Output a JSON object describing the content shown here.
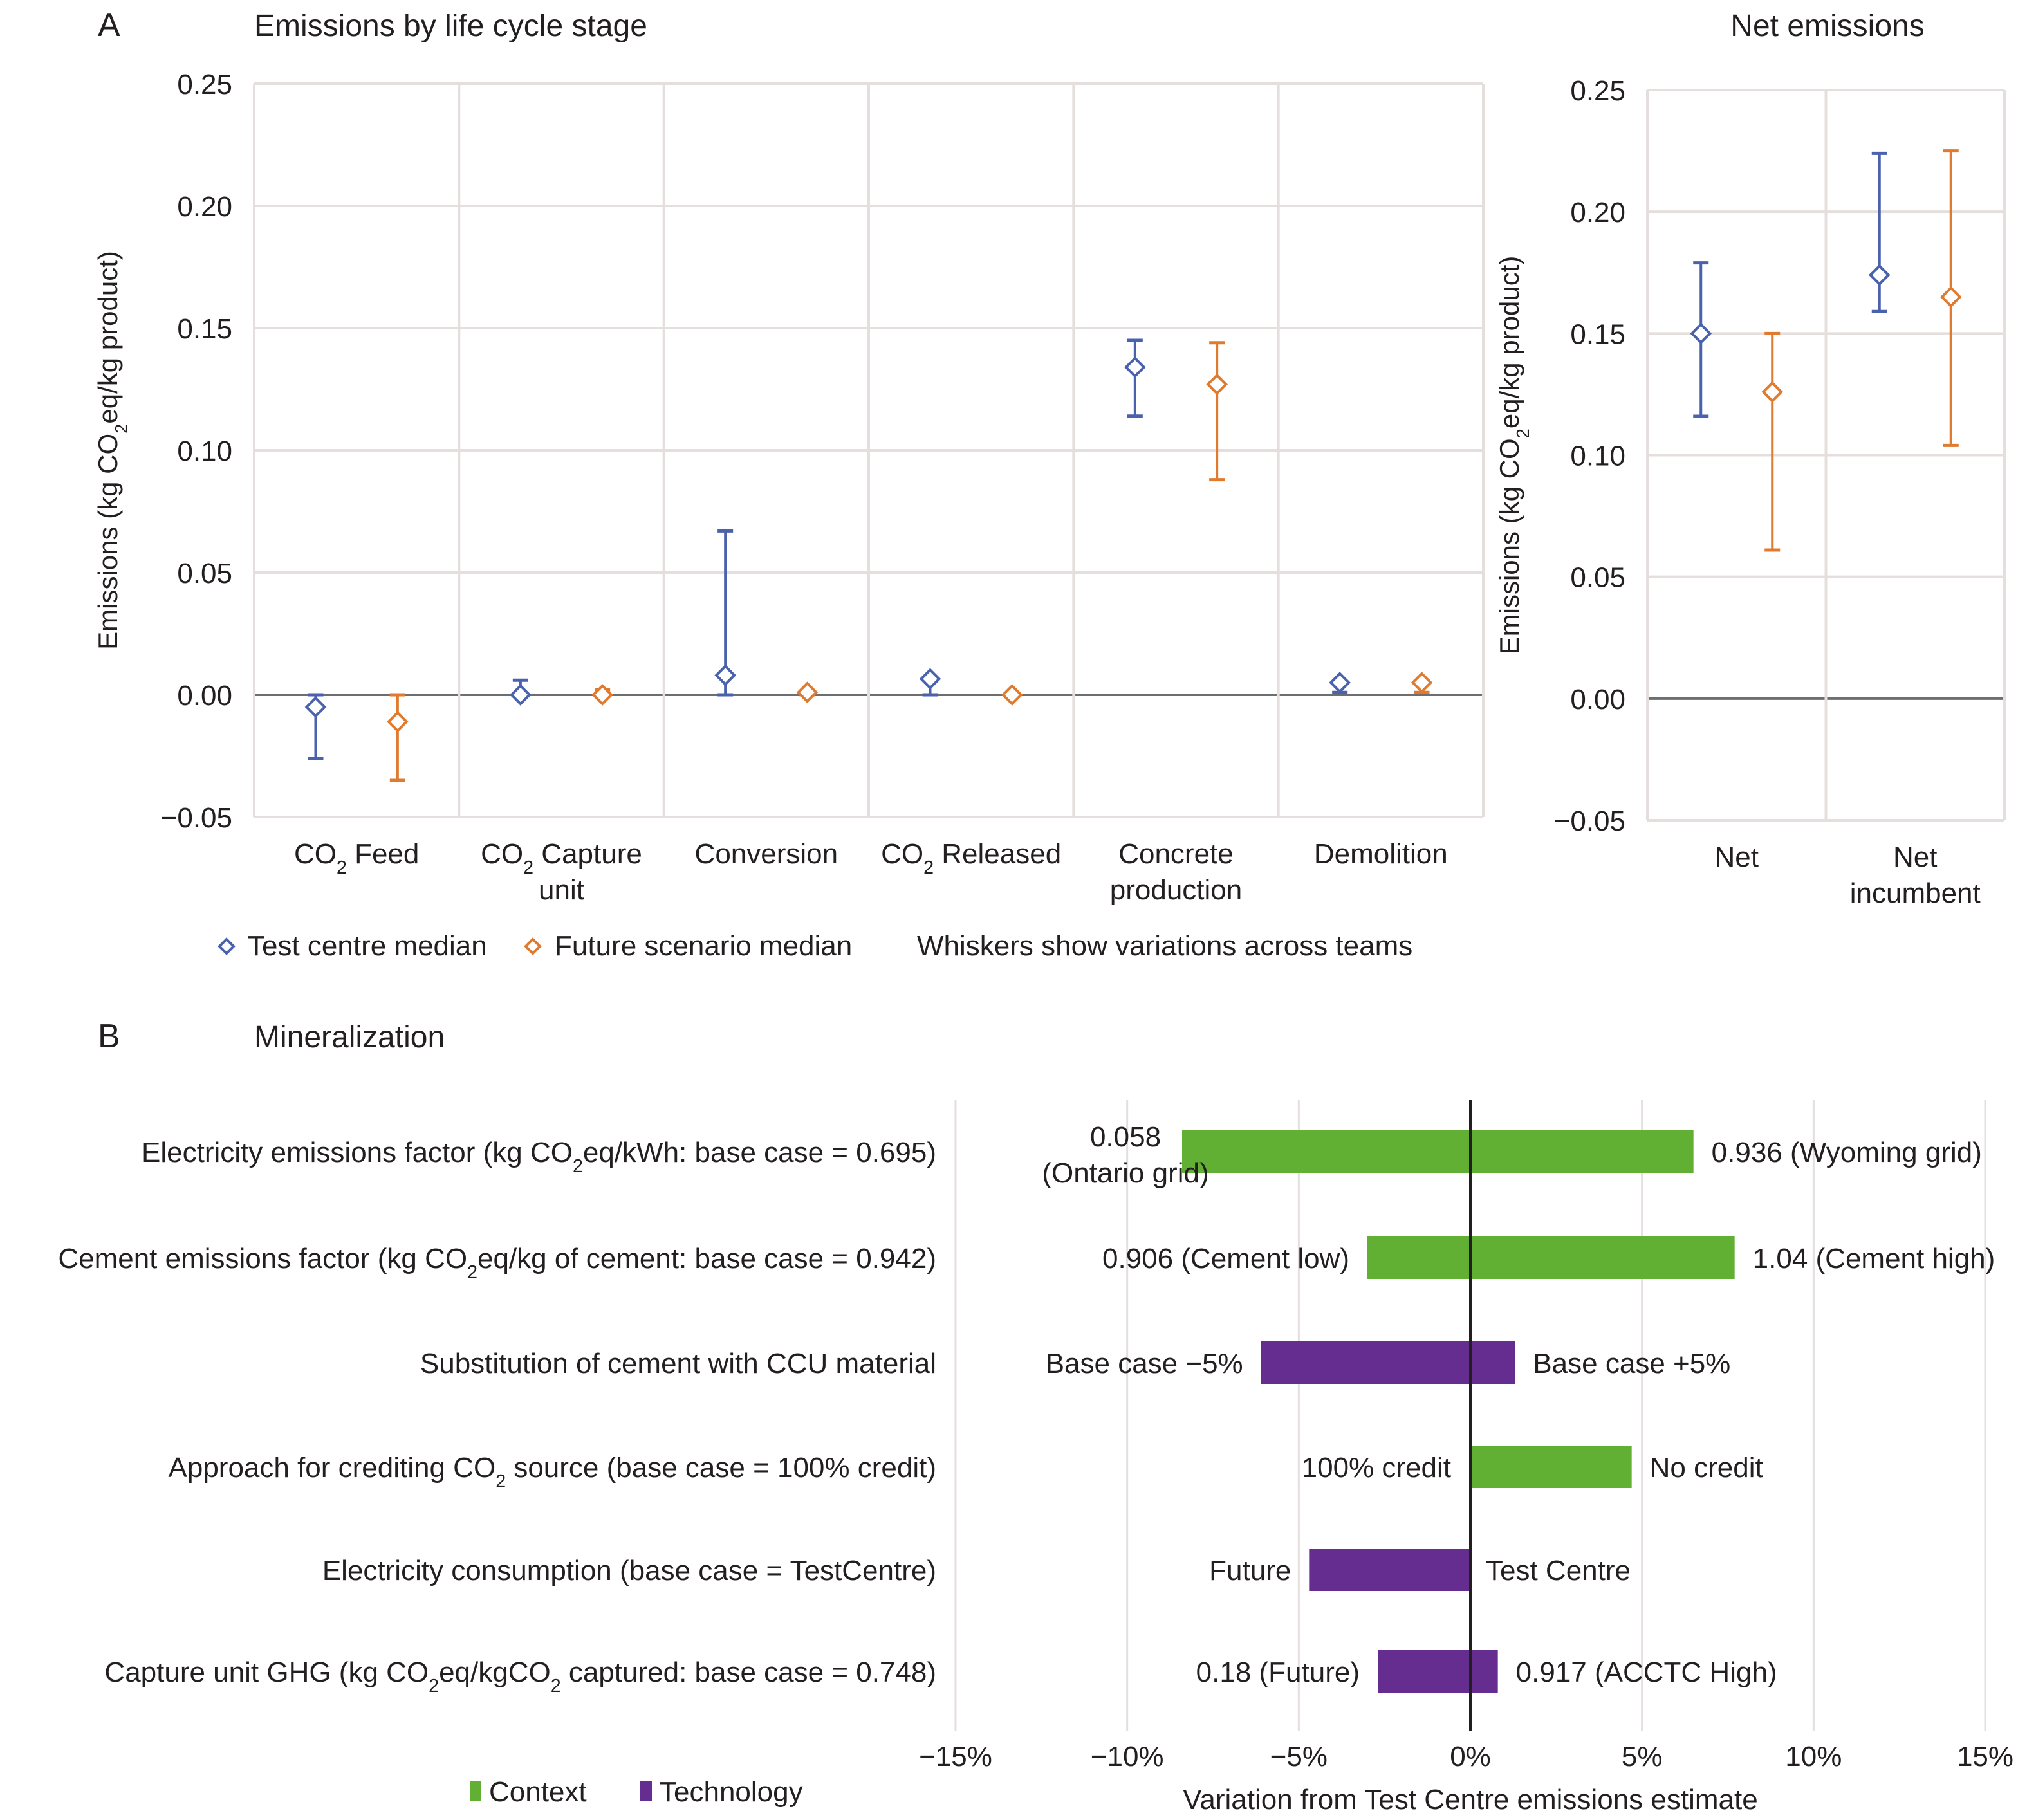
{
  "chart_data": [
    {
      "panel_letter": "A",
      "type": "scatter",
      "title": "Emissions by life cycle stage",
      "xlabel": "",
      "ylabel": "Emissions (kg CO₂eq/kg product)",
      "ylim": [
        -0.05,
        0.25
      ],
      "yticks": [
        "−0.05",
        "0.00",
        "0.05",
        "0.10",
        "0.15",
        "0.20",
        "0.25"
      ],
      "ytick_values": [
        -0.05,
        0,
        0.05,
        0.1,
        0.15,
        0.2,
        0.25
      ],
      "grid": true,
      "categories": [
        {
          "lines": [
            "CO₂ Feed"
          ]
        },
        {
          "lines": [
            "CO₂ Capture",
            "unit"
          ]
        },
        {
          "lines": [
            "Conversion"
          ]
        },
        {
          "lines": [
            "CO₂ Released"
          ]
        },
        {
          "lines": [
            "Concrete",
            "production"
          ]
        },
        {
          "lines": [
            "Demolition"
          ]
        }
      ],
      "series": [
        {
          "name": "Test centre median",
          "color": "#4a62ad",
          "median": [
            -0.005,
            0.0,
            0.008,
            0.0065,
            0.134,
            0.005
          ],
          "low": [
            -0.026,
            0.0,
            0.0,
            0.0,
            0.114,
            0.001
          ],
          "high": [
            0.0,
            0.006,
            0.067,
            0.006,
            0.145,
            0.005
          ]
        },
        {
          "name": "Future scenario median",
          "color": "#e07a2e",
          "median": [
            -0.011,
            0.0,
            0.001,
            0.0,
            0.127,
            0.005
          ],
          "low": [
            -0.035,
            0.0,
            0.0,
            0.0,
            0.088,
            0.001
          ],
          "high": [
            0.0,
            0.002,
            0.001,
            0.0,
            0.144,
            0.005
          ]
        }
      ],
      "legend": {
        "placement": "bottom",
        "items": [
          "Test centre median",
          "Future scenario median"
        ],
        "note": "Whiskers show variations across teams"
      }
    },
    {
      "type": "scatter",
      "title": "Net emissions",
      "xlabel": "",
      "ylabel": "Emissions (kg CO₂eq/kg product)",
      "ylim": [
        -0.05,
        0.25
      ],
      "yticks": [
        "−0.05",
        "0.00",
        "0.05",
        "0.10",
        "0.15",
        "0.20",
        "0.25"
      ],
      "ytick_values": [
        -0.05,
        0,
        0.05,
        0.1,
        0.15,
        0.2,
        0.25
      ],
      "grid": true,
      "categories": [
        {
          "lines": [
            "Net"
          ]
        },
        {
          "lines": [
            "Net",
            "incumbent"
          ]
        }
      ],
      "series": [
        {
          "name": "Test centre median",
          "color": "#4a62ad",
          "median": [
            0.15,
            0.174
          ],
          "low": [
            0.116,
            0.159
          ],
          "high": [
            0.179,
            0.224
          ]
        },
        {
          "name": "Future scenario median",
          "color": "#e07a2e",
          "median": [
            0.126,
            0.165
          ],
          "low": [
            0.061,
            0.104
          ],
          "high": [
            0.15,
            0.225
          ]
        }
      ]
    },
    {
      "panel_letter": "B",
      "type": "bar",
      "orientation": "horizontal-tornado",
      "title": "Mineralization",
      "xlabel": "Variation from Test Centre emissions estimate",
      "ylabel": "",
      "xlim": [
        -15,
        15
      ],
      "xticks": [
        "−15%",
        "−10%",
        "−5%",
        "0%",
        "5%",
        "10%",
        "15%"
      ],
      "xtick_values": [
        -15,
        -10,
        -5,
        0,
        5,
        10,
        15
      ],
      "grid": true,
      "categories": [
        "Electricity emissions factor (kg CO₂eq/kWh: base case = 0.695)",
        "Cement emissions factor (kg CO₂eq/kg of cement: base case = 0.942)",
        "Substitution of cement with CCU material",
        "Approach for crediting CO₂ source (base case = 100% credit)",
        "Electricity consumption (base case = TestCentre)",
        "Capture unit GHG (kg CO₂eq/kgCO₂ captured: base case = 0.748)"
      ],
      "bars": [
        {
          "low": -8.4,
          "high": 6.5,
          "group": "Context",
          "low_label": [
            "0.058",
            "(Ontario grid)"
          ],
          "high_label": [
            "0.936 (Wyoming grid)"
          ]
        },
        {
          "low": -3.0,
          "high": 7.7,
          "group": "Context",
          "low_label": [
            "0.906 (Cement low)"
          ],
          "high_label": [
            "1.04 (Cement high)"
          ]
        },
        {
          "low": -6.1,
          "high": 1.3,
          "group": "Technology",
          "low_label": [
            "Base case −5%"
          ],
          "high_label": [
            "Base case +5%"
          ]
        },
        {
          "low": 0.0,
          "high": 4.7,
          "group": "Context",
          "low_label": [
            "100% credit"
          ],
          "high_label": [
            "No credit"
          ]
        },
        {
          "low": -4.7,
          "high": 0.0,
          "group": "Technology",
          "low_label": [
            "Future"
          ],
          "high_label": [
            "Test Centre"
          ]
        },
        {
          "low": -2.7,
          "high": 0.8,
          "group": "Technology",
          "low_label": [
            "0.18 (Future)"
          ],
          "high_label": [
            "0.917 (ACCTC High)"
          ]
        }
      ],
      "legend": {
        "placement": "bottom-left",
        "items": [
          {
            "name": "Context",
            "color": "#62b033"
          },
          {
            "name": "Technology",
            "color": "#652d90"
          }
        ]
      }
    }
  ]
}
